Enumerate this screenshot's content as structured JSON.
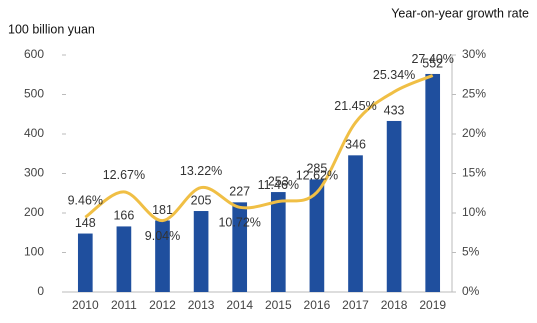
{
  "chart_data": {
    "type": "bar",
    "y_label": "100 billion yuan",
    "y2_label": "Year-on-year growth rate",
    "categories": [
      "2010",
      "2011",
      "2012",
      "2013",
      "2014",
      "2015",
      "2016",
      "2017",
      "2018",
      "2019"
    ],
    "series": [
      {
        "type": "bar",
        "color": "#1f4f9e",
        "values": [
          148,
          166,
          181,
          205,
          227,
          253,
          285,
          346,
          433,
          552
        ]
      },
      {
        "type": "line",
        "axis": "y2",
        "color": "#f0bf45",
        "values": [
          9.46,
          12.67,
          9.04,
          13.22,
          10.72,
          11.46,
          12.62,
          21.45,
          25.34,
          27.4
        ],
        "value_labels": [
          "9.46%",
          "12.67%",
          "9.04%",
          "13.22%",
          "10.72%",
          "11.46%",
          "12.62%",
          "21.45%",
          "25.34%",
          "27.40%"
        ]
      }
    ],
    "ylim": [
      0,
      600
    ],
    "yticks": [
      0,
      100,
      200,
      300,
      400,
      500,
      600
    ],
    "y2lim": [
      0,
      30
    ],
    "y2ticks": [
      {
        "value": 0,
        "label": "0%"
      },
      {
        "value": 5,
        "label": "5%"
      },
      {
        "value": 10,
        "label": "10%"
      },
      {
        "value": 15,
        "label": "15%"
      },
      {
        "value": 20,
        "label": "20%"
      },
      {
        "value": 25,
        "label": "25%"
      },
      {
        "value": 30,
        "label": "30%"
      }
    ],
    "grid": false
  }
}
